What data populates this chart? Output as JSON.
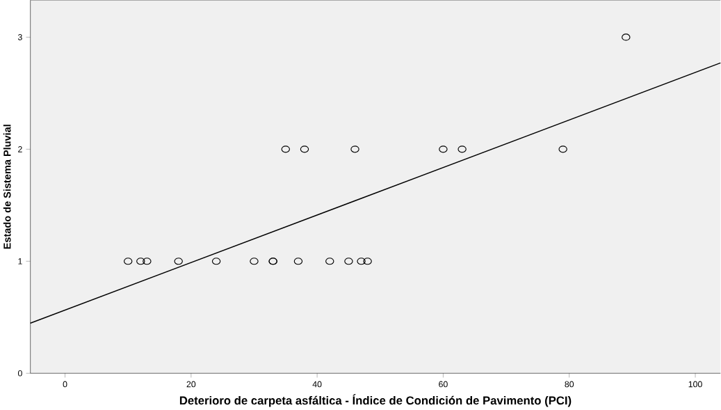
{
  "chart_data": {
    "type": "scatter",
    "xlabel": "Deterioro de carpeta asfáltica - Índice de Condición de Pavimento (PCI)",
    "ylabel": "Estado de Sistema Pluvial",
    "series": [
      {
        "color": "#000000",
        "marker": "circle",
        "x": [
          10,
          12,
          13,
          18,
          24,
          30,
          33,
          33,
          37,
          42,
          45,
          47,
          48,
          35,
          38,
          46,
          60,
          63,
          79,
          89
        ],
        "values": [
          1,
          1,
          1,
          1,
          1,
          1,
          1,
          1,
          1,
          1,
          1,
          1,
          1,
          2,
          2,
          2,
          2,
          2,
          2,
          3
        ]
      },
      {
        "type": "line",
        "color": "#000000",
        "marker": "none",
        "x": [
          -5.5,
          104
        ],
        "values": [
          0.447,
          2.77
        ]
      }
    ],
    "xlim": [
      -5.5,
      104
    ],
    "ylim": [
      0,
      3.33
    ],
    "xticks": [
      0,
      20,
      40,
      60,
      80,
      100
    ],
    "yticks": [
      0,
      1,
      2,
      3
    ],
    "grid": false
  }
}
